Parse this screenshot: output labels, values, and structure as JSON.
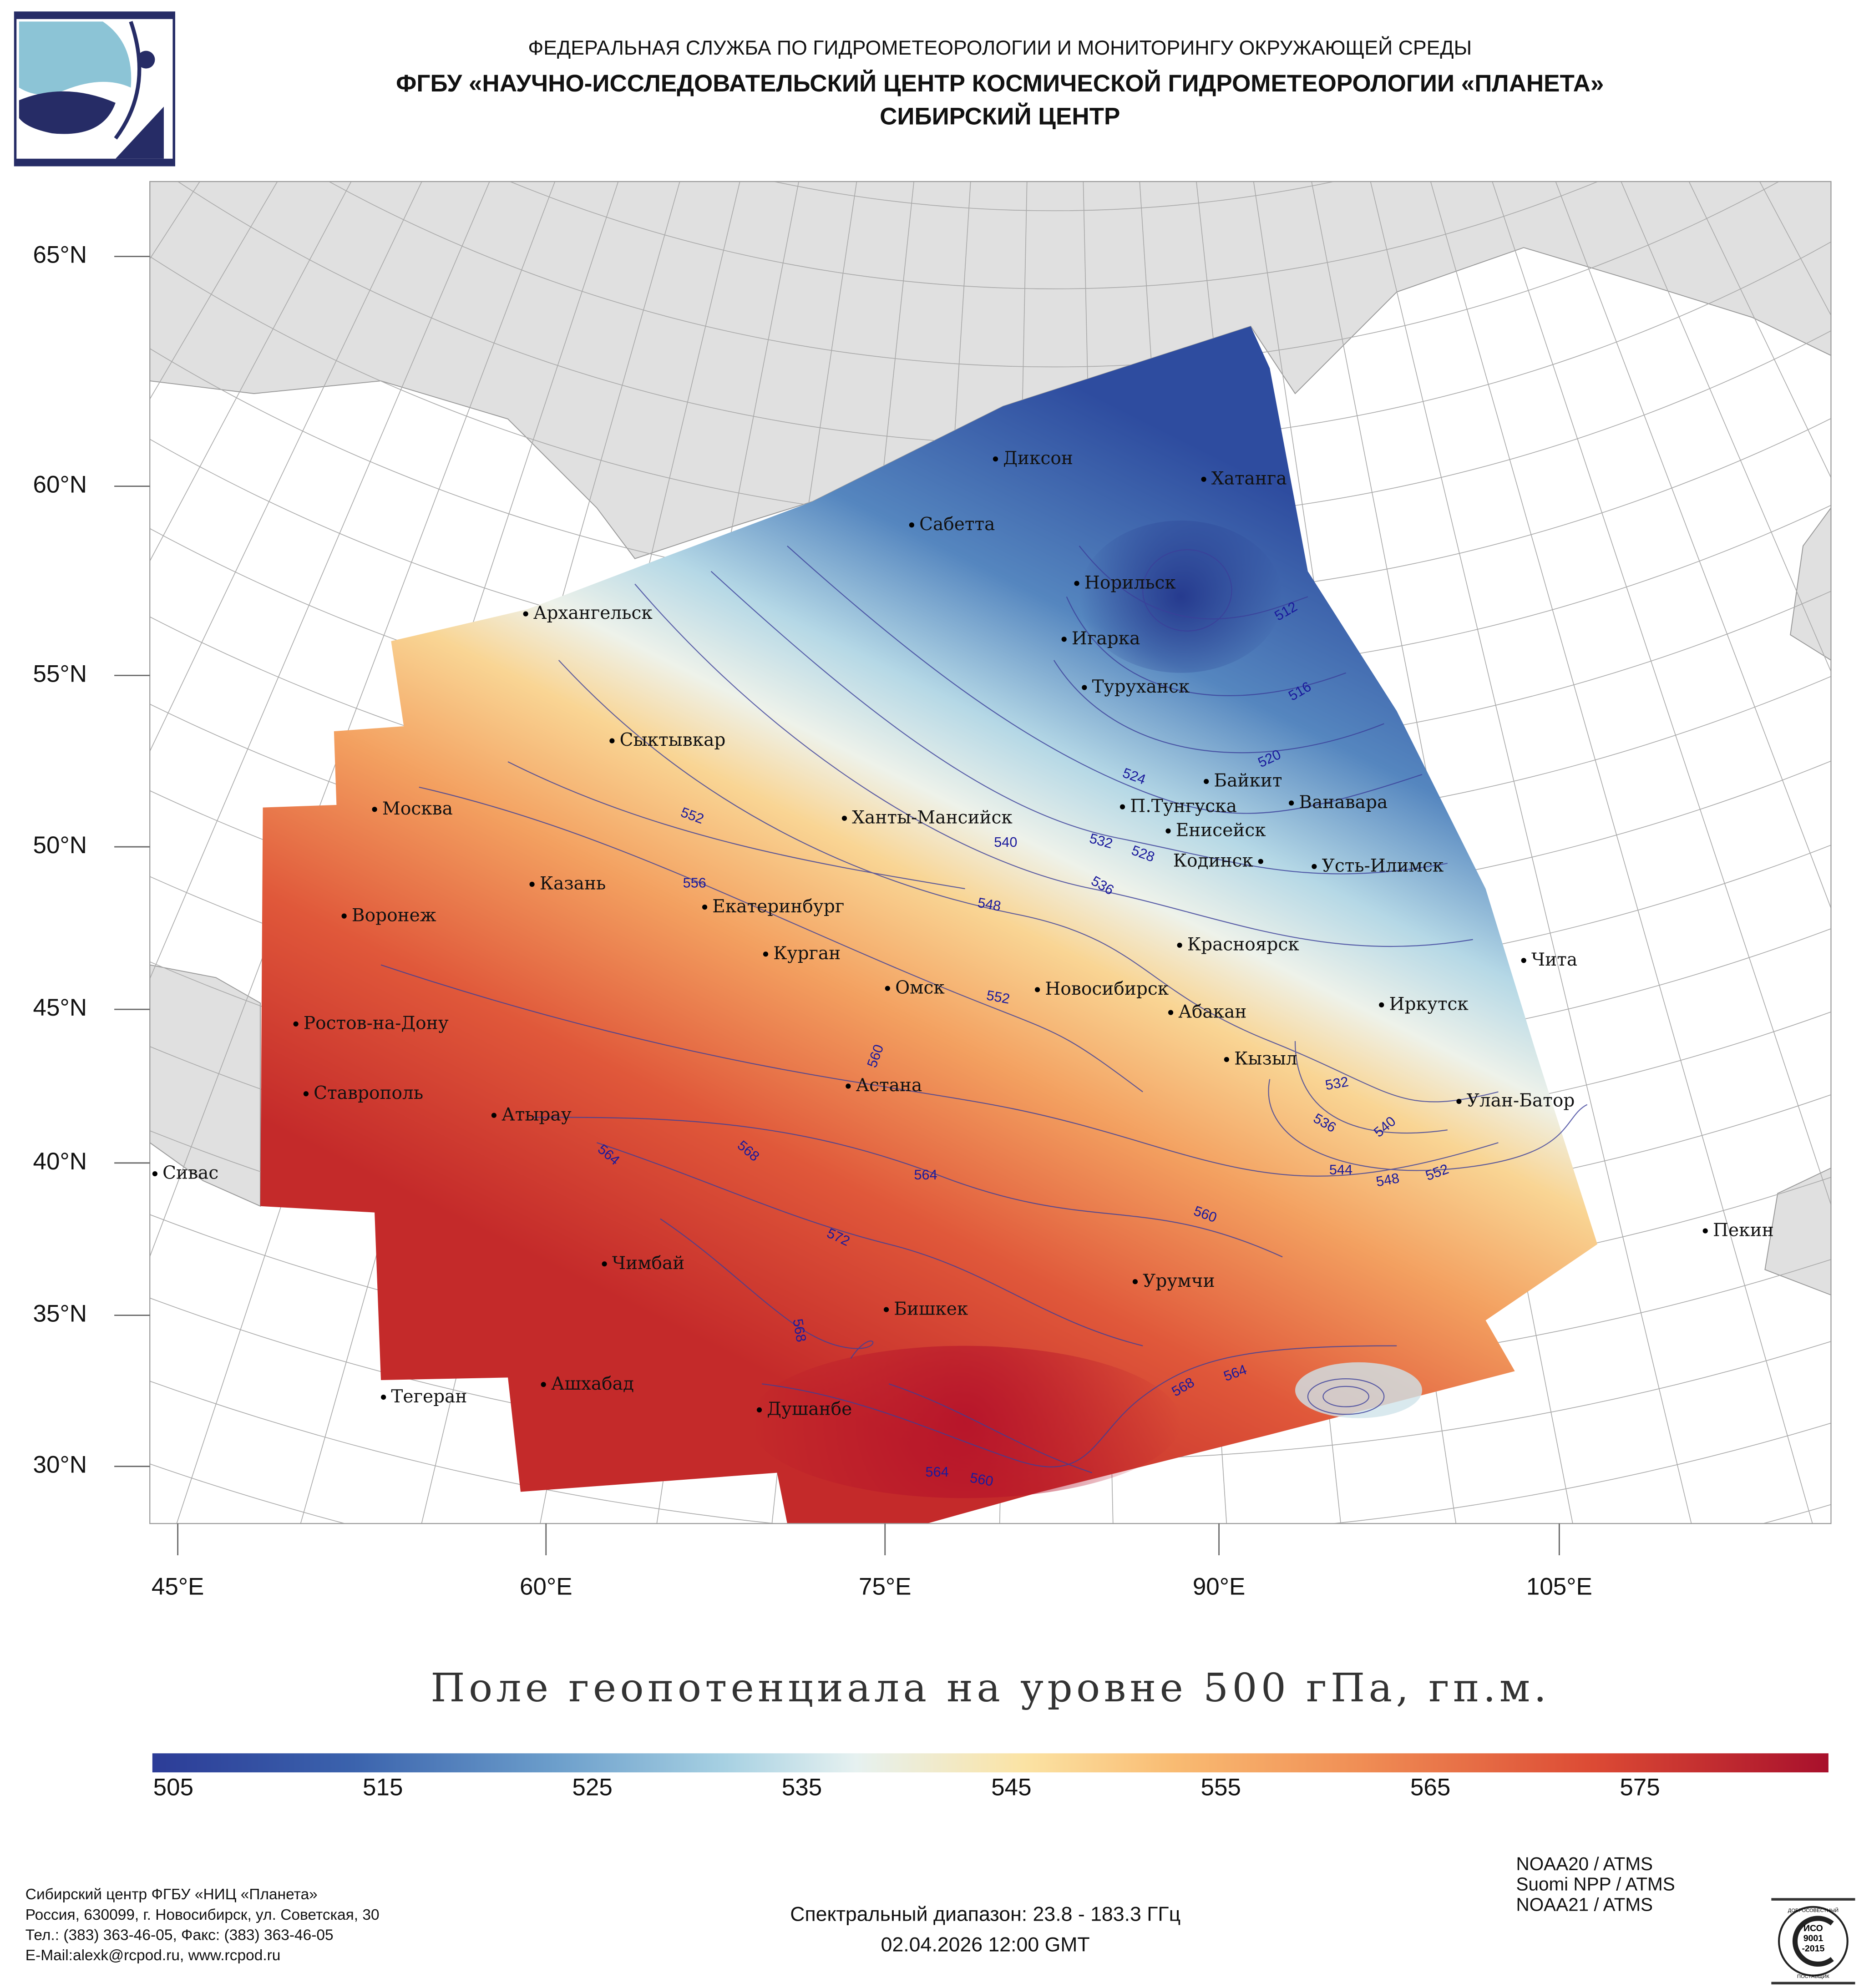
{
  "header": {
    "line1": "ФЕДЕРАЛЬНАЯ СЛУЖБА ПО ГИДРОМЕТЕОРОЛОГИИ И МОНИТОРИНГУ ОКРУЖАЮЩЕЙ СРЕДЫ",
    "line2": "ФГБУ «НАУЧНО-ИССЛЕДОВАТЕЛЬСКИЙ ЦЕНТР КОСМИЧЕСКОЙ ГИДРОМЕТЕОРОЛОГИИ «ПЛАНЕТА»",
    "line3": "СИБИРСКИЙ ЦЕНТР"
  },
  "map": {
    "lat_labels": [
      "65°N",
      "60°N",
      "55°N",
      "50°N",
      "45°N",
      "40°N",
      "35°N",
      "30°N"
    ],
    "lon_labels": [
      "45°E",
      "60°E",
      "75°E",
      "90°E",
      "105°E"
    ],
    "cities": [
      "Диксон",
      "Хатанга",
      "Сабетта",
      "Норильск",
      "Архангельск",
      "Игарка",
      "Туруханск",
      "Сыктывкар",
      "Байкит",
      "П.Тунгуска",
      "Ванавара",
      "Москва",
      "Ханты-Мансийск",
      "Енисейск",
      "Кодинск",
      "Усть-Илимск",
      "Казань",
      "Екатеринбург",
      "Воронеж",
      "Красноярск",
      "Курган",
      "Чита",
      "Омск",
      "Новосибирск",
      "Иркутск",
      "Абакан",
      "Ростов-на-Дону",
      "Кызыл",
      "Астана",
      "Ставрополь",
      "Улан-Батор",
      "Атырау",
      "Сивас",
      "Пекин",
      "Чимбай",
      "Урумчи",
      "Бишкек",
      "Ашхабад",
      "Тегеран",
      "Душанбе"
    ],
    "contour_labels": [
      "512",
      "516",
      "520",
      "524",
      "528",
      "532",
      "536",
      "540",
      "548",
      "552",
      "556",
      "552",
      "560",
      "564",
      "568",
      "564",
      "572",
      "568",
      "560",
      "564",
      "568",
      "564",
      "560",
      "532",
      "536",
      "540",
      "544",
      "548",
      "552"
    ]
  },
  "title": "Поле геопотенциала на уровне 500 гПа, гп.м.",
  "colorbar": {
    "min": 504,
    "max": 584,
    "ticks": [
      "505",
      "515",
      "525",
      "535",
      "545",
      "555",
      "565",
      "575"
    ]
  },
  "footer": {
    "org": [
      "Сибирский центр ФГБУ «НИЦ «Планета»",
      "Россия, 630099, г. Новосибирск, ул. Советская, 30",
      "Тел.: (383) 363-46-05, Факс: (383) 363-46-05",
      "E-Mail:alexk@rcpod.ru, www.rcpod.ru"
    ],
    "spectral": "Спектральный диапазон: 23.8 - 183.3 ГГц",
    "datetime": "02.04.2026 12:00 GMT",
    "satellites": [
      "NOAA20 / ATMS",
      "Suomi NPP / ATMS",
      "NOAA21 / ATMS"
    ],
    "iso": [
      "ДОБРОСОВЕСТНЫЙ",
      "ИСО",
      "9001",
      "-2015",
      "ПОСТАВЩИК"
    ]
  }
}
